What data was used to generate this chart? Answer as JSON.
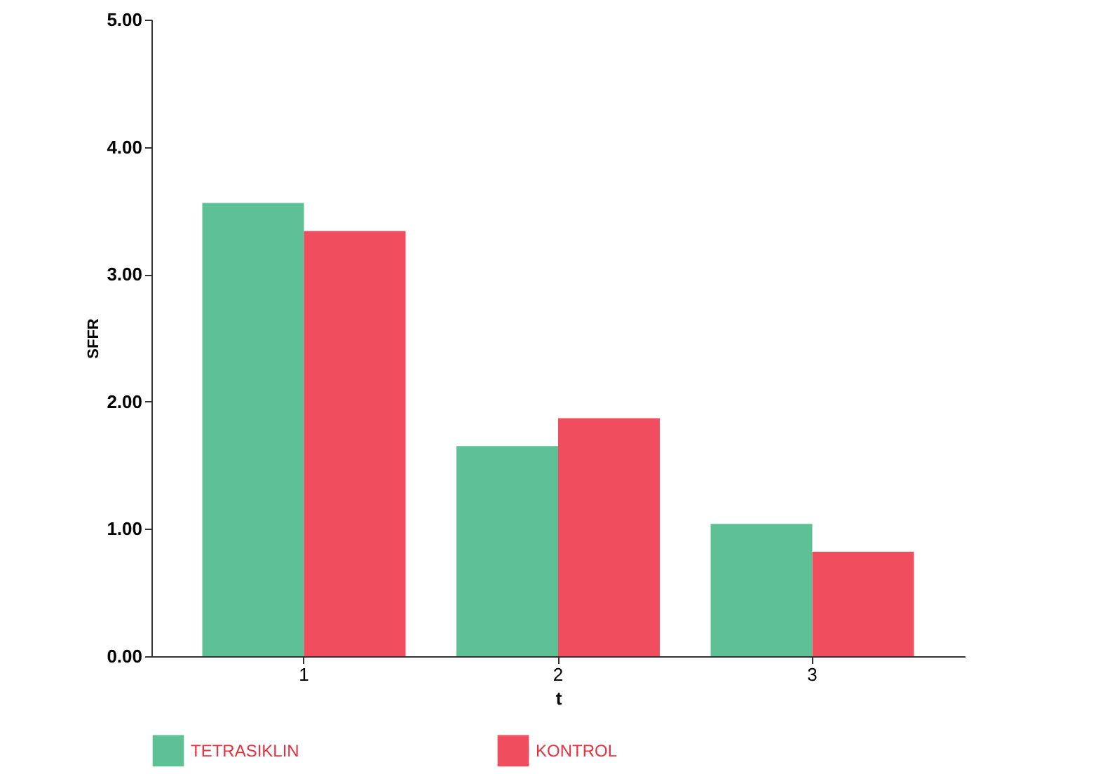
{
  "chart_data": {
    "type": "bar",
    "xlabel": "t",
    "ylabel": "SFFR",
    "categories": [
      "1",
      "2",
      "3"
    ],
    "series": [
      {
        "name": "TETRASIKLIN",
        "color": "#4dba8a",
        "values": [
          3.56,
          1.65,
          1.04
        ]
      },
      {
        "name": "KONTROL",
        "color": "#ee3a4c",
        "values": [
          3.34,
          1.87,
          0.82
        ]
      }
    ],
    "ylim": [
      0,
      5
    ],
    "yticks": [
      {
        "value": 0,
        "label": "0.00"
      },
      {
        "value": 1,
        "label": "1.00"
      },
      {
        "value": 2,
        "label": "2.00"
      },
      {
        "value": 3,
        "label": "3.00"
      },
      {
        "value": 4,
        "label": "4.00"
      },
      {
        "value": 5,
        "label": "5.00"
      }
    ],
    "grid": false,
    "legend": "bottom"
  }
}
